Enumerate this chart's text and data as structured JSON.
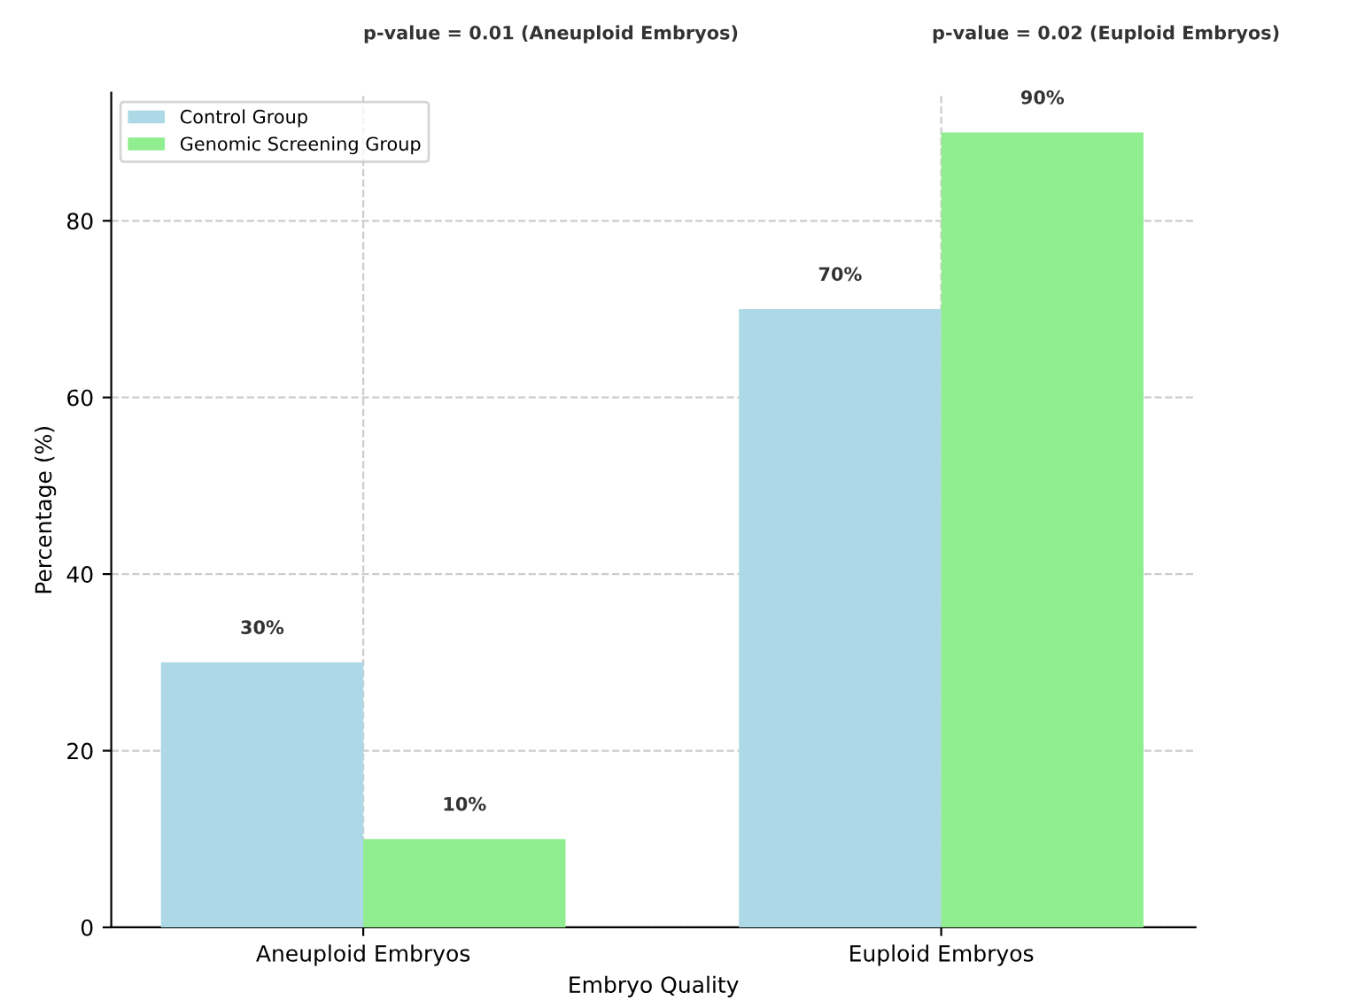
{
  "chart_data": {
    "type": "bar",
    "xlabel": "Embryo Quality",
    "ylabel": "Percentage (%)",
    "categories": [
      "Aneuploid Embryos",
      "Euploid Embryos"
    ],
    "series": [
      {
        "name": "Control Group",
        "color": "#add8e6",
        "values": [
          30,
          70
        ],
        "value_labels": [
          "30%",
          "70%"
        ]
      },
      {
        "name": "Genomic Screening Group",
        "color": "#90ee90",
        "values": [
          10,
          90
        ],
        "value_labels": [
          "10%",
          "90%"
        ]
      }
    ],
    "ylim": [
      0,
      94.5
    ],
    "yticks": [
      0,
      20,
      40,
      60,
      80
    ],
    "grid": true,
    "legend": "top left",
    "annotations": [
      "p-value = 0.01 (Aneuploid Embryos)",
      "p-value = 0.02 (Euploid Embryos)"
    ]
  }
}
